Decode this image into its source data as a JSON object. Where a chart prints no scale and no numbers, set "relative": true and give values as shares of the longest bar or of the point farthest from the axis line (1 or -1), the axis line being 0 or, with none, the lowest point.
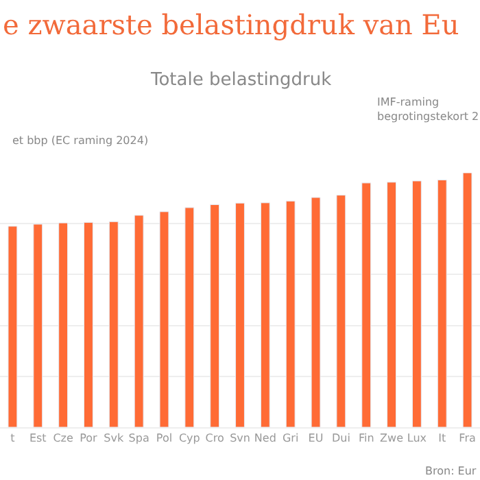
{
  "chart_data": {
    "type": "bar",
    "title": "e zwaarste belastingdruk van Eu",
    "subtitle": "Totale belastingdruk",
    "relative": true,
    "grid": true,
    "categories": [
      "t",
      "Est",
      "Cze",
      "Por",
      "Svk",
      "Spa",
      "Pol",
      "Cyp",
      "Cro",
      "Svn",
      "Ned",
      "Gri",
      "EU",
      "Dui",
      "Fin",
      "Zwe",
      "Lux",
      "It",
      "Fra"
    ],
    "series": [
      {
        "color": "#ff6b35",
        "values": [
          0.79,
          0.798,
          0.803,
          0.805,
          0.808,
          0.833,
          0.847,
          0.863,
          0.875,
          0.881,
          0.882,
          0.889,
          0.903,
          0.912,
          0.96,
          0.963,
          0.968,
          0.972,
          1.0
        ]
      }
    ],
    "annotations": [
      "et bbp (EC raming 2024)",
      "IMF-raming\nbegrotingstekort 2",
      "Bron: Eur"
    ]
  }
}
